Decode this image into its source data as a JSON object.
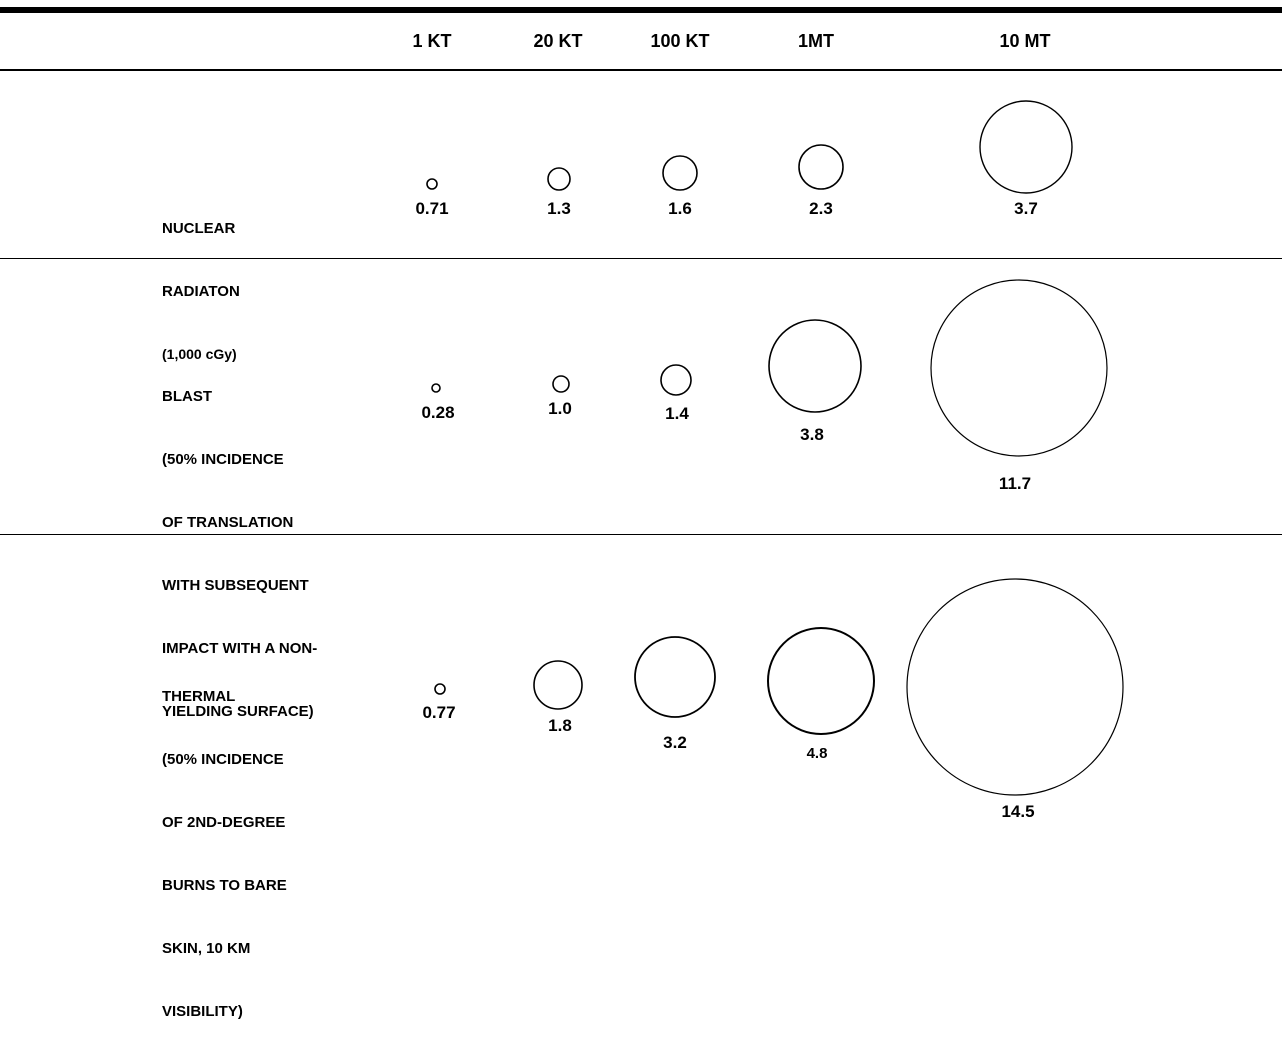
{
  "columns": [
    "1 KT",
    "20 KT",
    "100 KT",
    "1MT",
    "10 MT"
  ],
  "rows": [
    {
      "label_lines": [
        "NUCLEAR",
        "RADIATON",
        "(1,000 cGy)"
      ],
      "values": [
        "0.71",
        "1.3",
        "1.6",
        "2.3",
        "3.7"
      ]
    },
    {
      "label_lines": [
        "BLAST",
        "(50% INCIDENCE",
        "OF TRANSLATION",
        "WITH SUBSEQUENT",
        "IMPACT WITH A NON-",
        "YIELDING SURFACE)"
      ],
      "values": [
        "0.28",
        "1.0",
        "1.4",
        "3.8",
        "11.7"
      ]
    },
    {
      "label_lines": [
        "THERMAL",
        "(50% INCIDENCE",
        "OF 2ND-DEGREE",
        "BURNS TO BARE",
        "SKIN, 10 KM",
        "VISIBILITY)"
      ],
      "values": [
        "0.77",
        "1.8",
        "3.2",
        "4.8",
        "14.5"
      ]
    }
  ],
  "colors": {
    "ink": "#000000",
    "background": "#ffffff"
  }
}
